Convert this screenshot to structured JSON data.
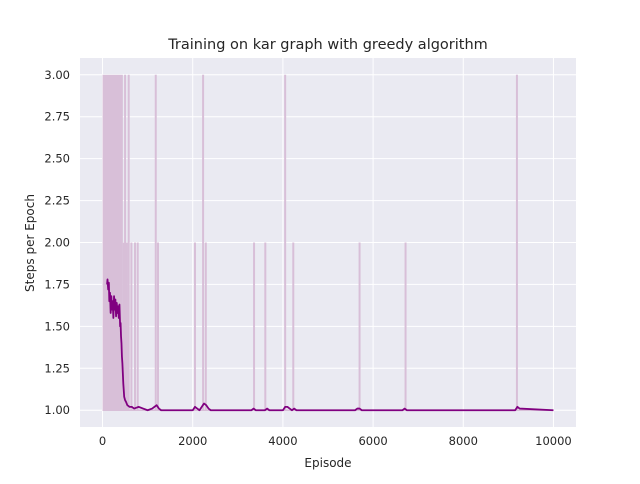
{
  "chart_data": {
    "type": "line",
    "title": "Training on kar graph with greedy algorithm",
    "xlabel": "Episode",
    "ylabel": "Steps per Epoch",
    "xlim": [
      -500,
      10500
    ],
    "ylim": [
      0.9,
      3.1
    ],
    "xticks": [
      0,
      2000,
      4000,
      6000,
      8000,
      10000
    ],
    "xtick_labels": [
      "0",
      "2000",
      "4000",
      "6000",
      "8000",
      "10000"
    ],
    "yticks": [
      1.0,
      1.25,
      1.5,
      1.75,
      2.0,
      2.25,
      2.5,
      2.75,
      3.0
    ],
    "ytick_labels": [
      "1.00",
      "1.25",
      "1.50",
      "1.75",
      "2.00",
      "2.25",
      "2.50",
      "2.75",
      "3.00"
    ],
    "grid": true,
    "background": "#eaeaf2",
    "series": [
      {
        "style": "raw",
        "color": "#d8bfd8",
        "baseline": 1.0,
        "dense_region": {
          "x": [
            0,
            450
          ],
          "ymax": 3.0
        },
        "spikes": [
          {
            "x": 470,
            "y": 2.0
          },
          {
            "x": 500,
            "y": 3.0
          },
          {
            "x": 540,
            "y": 2.0
          },
          {
            "x": 580,
            "y": 3.0
          },
          {
            "x": 640,
            "y": 2.0
          },
          {
            "x": 720,
            "y": 2.0
          },
          {
            "x": 780,
            "y": 2.0
          },
          {
            "x": 1180,
            "y": 3.0
          },
          {
            "x": 1230,
            "y": 2.0
          },
          {
            "x": 2050,
            "y": 2.0
          },
          {
            "x": 2230,
            "y": 3.0
          },
          {
            "x": 2290,
            "y": 2.0
          },
          {
            "x": 3360,
            "y": 2.0
          },
          {
            "x": 3610,
            "y": 2.0
          },
          {
            "x": 4050,
            "y": 3.0
          },
          {
            "x": 4230,
            "y": 2.0
          },
          {
            "x": 5700,
            "y": 2.0
          },
          {
            "x": 6720,
            "y": 2.0
          },
          {
            "x": 9190,
            "y": 3.0
          }
        ]
      },
      {
        "style": "smoothed",
        "color": "#800080",
        "x": [
          100,
          110,
          125,
          140,
          150,
          165,
          180,
          195,
          210,
          225,
          240,
          255,
          270,
          285,
          300,
          315,
          330,
          345,
          360,
          375,
          390,
          400,
          410,
          420,
          430,
          440,
          450,
          460,
          470,
          480,
          500,
          520,
          550,
          600,
          650,
          700,
          800,
          900,
          1000,
          1100,
          1150,
          1200,
          1250,
          1300,
          1400,
          1600,
          1800,
          2000,
          2050,
          2100,
          2150,
          2200,
          2250,
          2300,
          2350,
          2400,
          2500,
          3000,
          3300,
          3350,
          3400,
          3450,
          3600,
          3650,
          3700,
          4000,
          4050,
          4100,
          4150,
          4200,
          4250,
          4300,
          4350,
          5600,
          5650,
          5700,
          5750,
          6650,
          6700,
          6750,
          9150,
          9200,
          9250,
          10000
        ],
        "y": [
          1.75,
          1.78,
          1.72,
          1.76,
          1.65,
          1.7,
          1.58,
          1.68,
          1.6,
          1.65,
          1.55,
          1.68,
          1.6,
          1.66,
          1.56,
          1.64,
          1.58,
          1.62,
          1.55,
          1.63,
          1.5,
          1.52,
          1.44,
          1.4,
          1.32,
          1.28,
          1.22,
          1.16,
          1.12,
          1.08,
          1.06,
          1.05,
          1.03,
          1.02,
          1.02,
          1.01,
          1.02,
          1.01,
          1.0,
          1.01,
          1.02,
          1.03,
          1.01,
          1.0,
          1.0,
          1.0,
          1.0,
          1.0,
          1.02,
          1.01,
          1.0,
          1.02,
          1.04,
          1.03,
          1.01,
          1.0,
          1.0,
          1.0,
          1.0,
          1.01,
          1.0,
          1.0,
          1.0,
          1.01,
          1.0,
          1.0,
          1.02,
          1.02,
          1.01,
          1.0,
          1.01,
          1.0,
          1.0,
          1.0,
          1.01,
          1.01,
          1.0,
          1.0,
          1.01,
          1.0,
          1.0,
          1.02,
          1.01,
          1.0
        ]
      }
    ]
  }
}
